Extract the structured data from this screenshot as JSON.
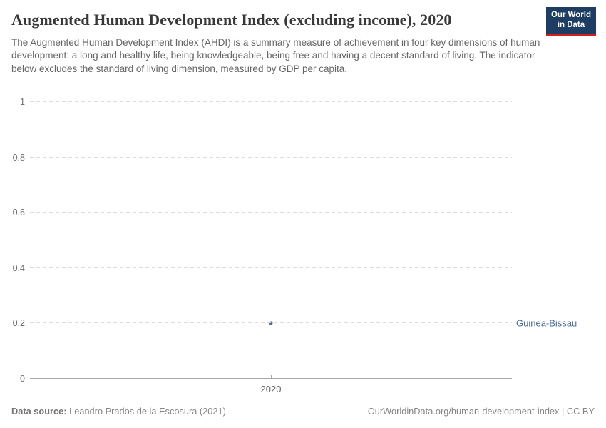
{
  "header": {
    "title": "Augmented Human Development Index (excluding income), 2020",
    "subtitle": "The Augmented Human Development Index (AHDI) is a summary measure of achievement in four key dimensions of human development: a long and healthy life, being knowledgeable, being free and having a decent standard of living. The indicator below excludes the standard of living dimension, measured by GDP per capita.",
    "logo": {
      "line1": "Our World",
      "line2": "in Data",
      "background_color": "#1d3d63",
      "stripe_color": "#d21e1f"
    }
  },
  "chart_data": {
    "type": "scatter",
    "title": "Augmented Human Development Index (excluding income), 2020",
    "x": [
      "2020"
    ],
    "xticks": [
      "2020"
    ],
    "series": [
      {
        "name": "Guinea-Bissau",
        "values": [
          0.2
        ]
      }
    ],
    "ylim": [
      0,
      1
    ],
    "yticks": [
      {
        "value": 0,
        "label": "0"
      },
      {
        "value": 0.2,
        "label": "0.2"
      },
      {
        "value": 0.4,
        "label": "0.4"
      },
      {
        "value": 0.6,
        "label": "0.6"
      },
      {
        "value": 0.8,
        "label": "0.8"
      },
      {
        "value": 1,
        "label": "1"
      }
    ],
    "grid": "horizontal-dashed",
    "legend_position": "right-inline-label",
    "point_color": "#4c6a9c",
    "label_color": "#4c6a9c"
  },
  "footer": {
    "source_label": "Data source:",
    "source_value": "Leandro Prados de la Escosura (2021)",
    "right_text": "OurWorldinData.org/human-development-index | CC BY"
  }
}
